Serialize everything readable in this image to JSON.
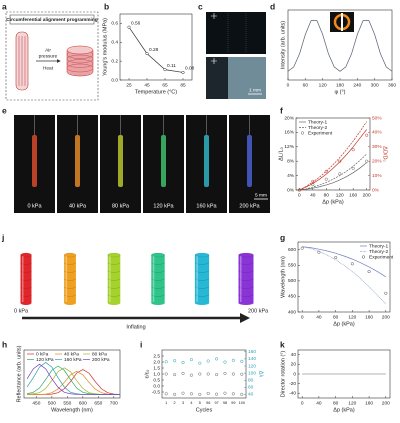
{
  "figure": {
    "a": {
      "label": "a",
      "title": "Circumferential alignment programming",
      "air": "Air",
      "pressure": "pressure",
      "heat": "Heat"
    },
    "c": {
      "label": "c",
      "scale": "1 mm"
    },
    "e": {
      "label": "e",
      "frames": [
        "0 kPa",
        "40 kPa",
        "80 kPa",
        "120 kPa",
        "160 kPa",
        "200 kPa"
      ],
      "colors": [
        "#d64a2a",
        "#e08a25",
        "#b8c42c",
        "#3fbf6a",
        "#2fb3c4",
        "#4a5fd0"
      ],
      "scale": "5 mm"
    },
    "j": {
      "label": "j",
      "colors": [
        "#e0262b",
        "#f0a021",
        "#a6d22e",
        "#2fc48a",
        "#27b8d6",
        "#8a34d8"
      ],
      "start": "0 kPa",
      "arrow": "Inflating",
      "end": "200 kPa"
    }
  },
  "chart_data": [
    {
      "type": "line",
      "label": "b",
      "xlabel": "Temperature (°C)",
      "ylabel": "Young's modulus (MPa)",
      "x": [
        25,
        45,
        65,
        85
      ],
      "xlim": [
        15,
        95
      ],
      "xticks": [
        25,
        45,
        65,
        85
      ],
      "ylim": [
        0,
        0.7
      ],
      "yticks": [
        {
          "value": 0,
          "label": "0.0"
        },
        0.2,
        0.4,
        0.6
      ],
      "data_labels": true,
      "series": [
        {
          "color": "#333333",
          "style": "line markers",
          "values": [
            0.56,
            0.28,
            0.11,
            0.08
          ]
        }
      ]
    },
    {
      "type": "line",
      "label": "d",
      "xlabel": "φ (°)",
      "ylabel": "Intensity (arb. units)",
      "x": [
        0,
        20,
        40,
        60,
        80,
        100,
        120,
        140,
        160,
        180,
        200,
        220,
        240,
        260,
        280,
        300,
        320,
        340,
        360
      ],
      "xlim": [
        0,
        360
      ],
      "xticks": [
        0,
        60,
        120,
        180,
        240,
        300,
        360
      ],
      "ylim": [
        0.2,
        1.0
      ],
      "series": [
        {
          "color": "#556070",
          "style": "line",
          "values": [
            0.3,
            0.35,
            0.5,
            0.72,
            0.88,
            0.88,
            0.72,
            0.5,
            0.35,
            0.3,
            0.35,
            0.5,
            0.72,
            0.88,
            0.88,
            0.72,
            0.5,
            0.35,
            0.3
          ]
        }
      ]
    },
    {
      "type": "line",
      "label": "f",
      "xlabel": "Δp (kPa)",
      "ylabel": "ΔL/L₀",
      "y2label": "ΔD/D₀",
      "y2color": "#c0392b",
      "xlim": [
        -10,
        210
      ],
      "xticks": [
        0,
        40,
        80,
        120,
        160,
        200
      ],
      "ylim": [
        0,
        20
      ],
      "yticks": [
        {
          "value": 0,
          "label": "0%"
        },
        {
          "value": 4,
          "label": "4%"
        },
        {
          "value": 8,
          "label": "8%"
        },
        {
          "value": 12,
          "label": "12%"
        },
        {
          "value": 16,
          "label": "16%"
        },
        {
          "value": 20,
          "label": "20%"
        }
      ],
      "y2lim": [
        0,
        50
      ],
      "y2ticks": [
        {
          "value": 0,
          "label": "0%"
        },
        {
          "value": 10,
          "label": "10%"
        },
        {
          "value": 20,
          "label": "20%"
        },
        {
          "value": 30,
          "label": "30%"
        },
        {
          "value": 40,
          "label": "40%"
        },
        {
          "value": 50,
          "label": "50%"
        }
      ],
      "legend": "upper left",
      "series": [
        {
          "name": "Theory-1",
          "color": "#666666",
          "style": "line",
          "x": [
            0,
            20,
            40,
            60,
            80,
            100,
            120,
            140,
            160,
            180,
            200
          ],
          "values": [
            0,
            0.2,
            0.5,
            0.9,
            1.4,
            2,
            2.8,
            3.7,
            4.8,
            6.1,
            7.6
          ]
        },
        {
          "name": "Theory-2",
          "color": "#666666",
          "style": "line dashed",
          "x": [
            0,
            20,
            40,
            60,
            80,
            100,
            120,
            140,
            160,
            180,
            200
          ],
          "values": [
            0,
            0.3,
            0.8,
            1.4,
            2.1,
            3,
            4,
            5.2,
            6.6,
            8.2,
            10
          ]
        },
        {
          "name": "Experiment",
          "color": "#666666",
          "style": "markers",
          "x": [
            0,
            40,
            80,
            120,
            160,
            200
          ],
          "values": [
            0,
            1.5,
            3,
            4.5,
            6,
            8
          ]
        },
        {
          "color": "#c0392b",
          "style": "line",
          "axis": "y2",
          "x": [
            0,
            20,
            40,
            60,
            80,
            100,
            120,
            140,
            160,
            180,
            200
          ],
          "values": [
            0,
            2,
            4.5,
            7.5,
            11,
            15,
            19.5,
            24.5,
            30,
            36,
            42
          ]
        },
        {
          "color": "#c0392b",
          "style": "line dashed",
          "axis": "y2",
          "x": [
            0,
            20,
            40,
            60,
            80,
            100,
            120,
            140,
            160,
            180,
            200
          ],
          "values": [
            0,
            2.5,
            5.5,
            9,
            13,
            17.5,
            22.5,
            28,
            34,
            40.5,
            47.5
          ]
        },
        {
          "color": "#c0392b",
          "style": "markers",
          "axis": "y2",
          "x": [
            0,
            40,
            80,
            120,
            160,
            200
          ],
          "values": [
            0,
            6,
            13,
            20,
            28,
            38
          ]
        }
      ]
    },
    {
      "type": "line",
      "label": "g",
      "xlabel": "Δp (kPa)",
      "ylabel": "Wavelength (nm)",
      "xlim": [
        -10,
        210
      ],
      "xticks": [
        0,
        40,
        80,
        120,
        160,
        200
      ],
      "ylim": [
        400,
        625
      ],
      "yticks": [
        400,
        450,
        500,
        550,
        600
      ],
      "legend": "upper right",
      "series": [
        {
          "name": "Theory-1",
          "color": "#7080c0",
          "style": "line",
          "x": [
            0,
            20,
            40,
            60,
            80,
            100,
            120,
            140,
            160,
            180,
            200
          ],
          "values": [
            610,
            607,
            602,
            596,
            589,
            580,
            570,
            558,
            545,
            530,
            513
          ]
        },
        {
          "name": "Theory-2",
          "color": "#7080c0",
          "style": "line dotted",
          "x": [
            0,
            20,
            40,
            60,
            80,
            100,
            120,
            140,
            160,
            180,
            200
          ],
          "values": [
            610,
            604,
            595,
            583,
            568,
            550,
            530,
            507,
            482,
            455,
            425
          ]
        },
        {
          "name": "Experiment",
          "color": "#555555",
          "style": "markers",
          "x": [
            0,
            40,
            80,
            120,
            160,
            200
          ],
          "values": [
            605,
            592,
            575,
            555,
            530,
            460
          ]
        }
      ]
    },
    {
      "type": "line",
      "label": "h",
      "xlabel": "Wavelength (nm)",
      "ylabel": "Reflectance (arb. units)",
      "x": [
        420,
        440,
        460,
        480,
        500,
        520,
        540,
        560,
        580,
        600,
        620,
        640,
        660,
        680,
        700,
        720
      ],
      "xlim": [
        410,
        720
      ],
      "xticks": [
        450,
        500,
        550,
        600,
        650,
        700
      ],
      "ylim": [
        0,
        1.35
      ],
      "legend": "upper left",
      "legend_columns": 3,
      "series": [
        {
          "name": "0 kPa",
          "color": "#d0302b",
          "style": "line",
          "values": [
            0.1,
            0.1,
            0.1,
            0.1,
            0.11,
            0.15,
            0.26,
            0.46,
            0.7,
            0.8,
            0.7,
            0.46,
            0.26,
            0.15,
            0.11,
            0.1
          ]
        },
        {
          "name": "40 kPa",
          "color": "#e08a25",
          "style": "line",
          "values": [
            0.1,
            0.1,
            0.1,
            0.11,
            0.15,
            0.25,
            0.44,
            0.65,
            0.75,
            0.65,
            0.44,
            0.25,
            0.15,
            0.11,
            0.1,
            0.1
          ]
        },
        {
          "name": "80 kPa",
          "color": "#a6b22e",
          "style": "line",
          "values": [
            0.1,
            0.12,
            0.15,
            0.27,
            0.49,
            0.74,
            0.85,
            0.74,
            0.49,
            0.27,
            0.15,
            0.12,
            0.1,
            0.1,
            0.1,
            0.1
          ]
        },
        {
          "name": "120 kPa",
          "color": "#2fa86a",
          "style": "line",
          "values": [
            0.12,
            0.16,
            0.28,
            0.52,
            0.78,
            0.9,
            0.78,
            0.52,
            0.28,
            0.16,
            0.12,
            0.1,
            0.1,
            0.1,
            0.1,
            0.1
          ]
        },
        {
          "name": "160 kPa",
          "color": "#2a9fb4",
          "style": "line",
          "values": [
            0.31,
            0.57,
            0.87,
            1.0,
            0.87,
            0.57,
            0.31,
            0.16,
            0.12,
            0.1,
            0.1,
            0.1,
            0.1,
            0.1,
            0.1,
            0.1
          ]
        },
        {
          "name": "200 kPa",
          "color": "#7a3ac8",
          "style": "line",
          "values": [
            0.54,
            0.82,
            0.95,
            0.82,
            0.54,
            0.3,
            0.16,
            0.12,
            0.1,
            0.1,
            0.1,
            0.1,
            0.1,
            0.1,
            0.1,
            0.1
          ]
        }
      ]
    },
    {
      "type": "scatter",
      "label": "i",
      "xlabel": "Cycles",
      "ylabel": "ε/ε₀",
      "y2label": "Δλ",
      "y2color": "#2a9fb4",
      "categories": [
        "1",
        "2",
        "3",
        "4",
        "5",
        "96",
        "97",
        "98",
        "99",
        "100"
      ],
      "ylim": [
        -1,
        3
      ],
      "yticks": [
        -0.5,
        {
          "value": 0,
          "label": "0.0"
        },
        0.5,
        {
          "value": 1,
          "label": "1.0"
        },
        1.5,
        {
          "value": 2,
          "label": "2.0"
        },
        2.5
      ],
      "y2lim": [
        30,
        165
      ],
      "y2ticks": [
        40,
        60,
        80,
        100,
        120,
        140,
        160
      ],
      "series": [
        {
          "color": "#2a9fb4",
          "style": "markers",
          "axis": "y2",
          "values": [
            132,
            135,
            130,
            138,
            128,
            134,
            140,
            131,
            136,
            133
          ]
        },
        {
          "color": "#666666",
          "style": "markers",
          "values": [
            1.0,
            0.95,
            1.05,
            0.9,
            1.0,
            1.0,
            0.95,
            1.05,
            1.0,
            0.98
          ]
        },
        {
          "color": "#666666",
          "style": "markers",
          "values": [
            -0.65,
            -0.7,
            -0.6,
            -0.65,
            -0.7,
            -0.62,
            -0.68,
            -0.6,
            -0.65,
            -0.7
          ]
        }
      ]
    },
    {
      "type": "line",
      "label": "k",
      "xlabel": "Δp (kPa)",
      "ylabel": "Director rotation (°)",
      "x": [
        0,
        40,
        80,
        120,
        160,
        200
      ],
      "xlim": [
        -10,
        210
      ],
      "xticks": [
        0,
        40,
        80,
        120,
        160,
        200
      ],
      "ylim": [
        -50,
        50
      ],
      "yticks": [
        -40,
        -20,
        0,
        20,
        40
      ],
      "series": [
        {
          "color": "#999999",
          "style": "line",
          "values": [
            0,
            0,
            0,
            0,
            0,
            0
          ]
        }
      ]
    }
  ]
}
